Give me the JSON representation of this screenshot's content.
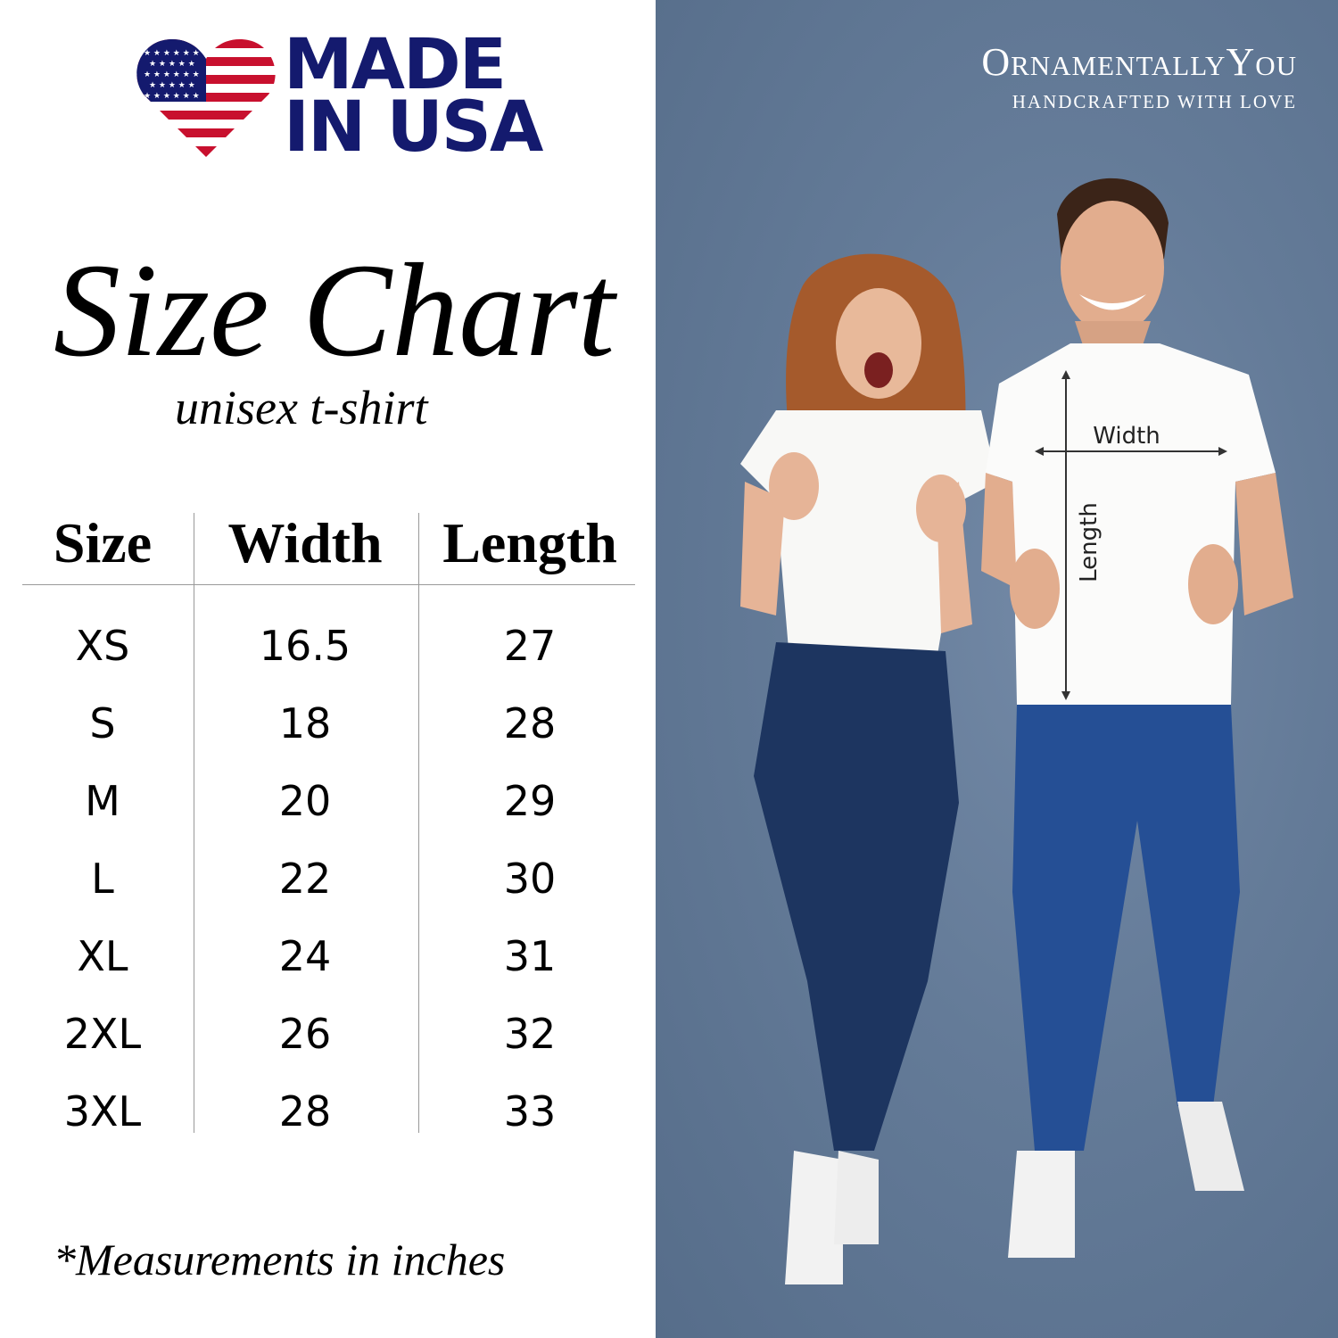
{
  "logo": {
    "line1": "MADE",
    "line2": "IN USA",
    "flag_colors": {
      "red": "#c8102e",
      "blue": "#141a6e"
    }
  },
  "title": "Size Chart",
  "subtitle": "unisex t-shirt",
  "table": {
    "headers": [
      "Size",
      "Width",
      "Length"
    ],
    "rows": [
      [
        "XS",
        "16.5",
        "27"
      ],
      [
        "S",
        "18",
        "28"
      ],
      [
        "M",
        "20",
        "29"
      ],
      [
        "L",
        "22",
        "30"
      ],
      [
        "XL",
        "24",
        "31"
      ],
      [
        "2XL",
        "26",
        "32"
      ],
      [
        "3XL",
        "28",
        "33"
      ]
    ]
  },
  "footnote": "*Measurements in inches",
  "brand": {
    "name": "OrnamentallyYou",
    "tagline": "HANDCRAFTED WITH LOVE"
  },
  "photo": {
    "width_label": "Width",
    "length_label": "Length",
    "background_color": "#647b98"
  }
}
